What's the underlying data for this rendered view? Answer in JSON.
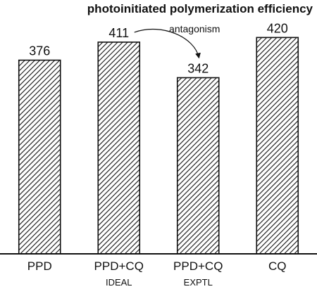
{
  "chart_data": {
    "type": "bar",
    "title": "photoinitiated polymerization efficiency",
    "xlabel": "",
    "ylabel": "",
    "categories": [
      "PPD",
      "PPD+CQ",
      "PPD+CQ",
      "CQ"
    ],
    "sublabels": [
      "",
      "IDEAL",
      "EXPTL",
      ""
    ],
    "values": [
      376,
      411,
      342,
      420
    ],
    "data_labels": [
      "376",
      "411",
      "342",
      "420"
    ],
    "ylim": [
      0,
      430
    ],
    "grid": false,
    "fill_pattern": "diagonal-hatch",
    "bar_color": "#111111",
    "annotation": {
      "text": "antagonism",
      "from_category_index": 1,
      "to_category_index": 2
    }
  }
}
